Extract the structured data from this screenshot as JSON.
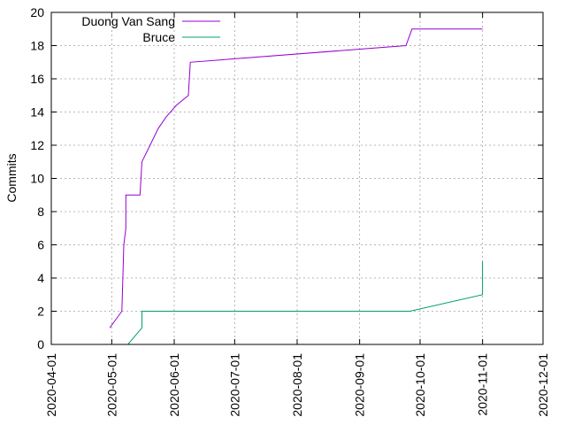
{
  "chart_data": {
    "type": "line",
    "title": "",
    "xlabel": "",
    "ylabel": "Commits",
    "xlim": [
      "2020-04-01",
      "2020-12-01"
    ],
    "ylim": [
      0,
      20
    ],
    "xticks": [
      "2020-04-01",
      "2020-05-01",
      "2020-06-01",
      "2020-07-01",
      "2020-08-01",
      "2020-09-01",
      "2020-10-01",
      "2020-11-01",
      "2020-12-01"
    ],
    "yticks": [
      0,
      2,
      4,
      6,
      8,
      10,
      12,
      14,
      16,
      18,
      20
    ],
    "grid": true,
    "legend_position": "top-left",
    "series": [
      {
        "name": "Duong Van Sang",
        "color": "#9400d3",
        "points": [
          [
            "2020-04-30",
            1
          ],
          [
            "2020-05-06",
            2
          ],
          [
            "2020-05-07",
            6
          ],
          [
            "2020-05-08",
            7
          ],
          [
            "2020-05-08",
            9
          ],
          [
            "2020-05-15",
            9
          ],
          [
            "2020-05-16",
            11
          ],
          [
            "2020-05-20",
            12
          ],
          [
            "2020-05-24",
            13
          ],
          [
            "2020-05-28",
            13.7
          ],
          [
            "2020-06-02",
            14.4
          ],
          [
            "2020-06-08",
            15
          ],
          [
            "2020-06-09",
            17
          ],
          [
            "2020-09-24",
            18
          ],
          [
            "2020-09-27",
            19
          ],
          [
            "2020-11-01",
            19
          ]
        ]
      },
      {
        "name": "Bruce",
        "color": "#009e73",
        "points": [
          [
            "2020-05-09",
            0
          ],
          [
            "2020-05-16",
            1
          ],
          [
            "2020-05-16",
            2
          ],
          [
            "2020-09-26",
            2
          ],
          [
            "2020-11-01",
            3
          ],
          [
            "2020-11-01",
            5
          ]
        ]
      }
    ]
  }
}
